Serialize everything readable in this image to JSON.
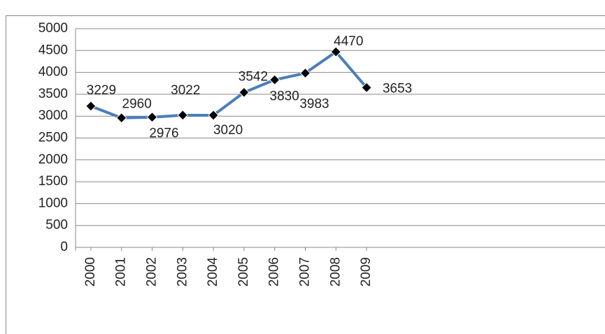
{
  "chart_data": {
    "type": "line",
    "categories": [
      "2000",
      "2001",
      "2002",
      "2003",
      "2004",
      "2005",
      "2006",
      "2007",
      "2008",
      "2009"
    ],
    "values": [
      3229,
      2960,
      2976,
      3022,
      3020,
      3542,
      3830,
      3983,
      4470,
      3653
    ],
    "color": "#4a7ebb",
    "ylim": [
      0,
      5000
    ],
    "yticks": [
      0,
      500,
      1000,
      1500,
      2000,
      2500,
      3000,
      3500,
      4000,
      4500,
      5000
    ],
    "grid": true,
    "data_labels": true
  }
}
